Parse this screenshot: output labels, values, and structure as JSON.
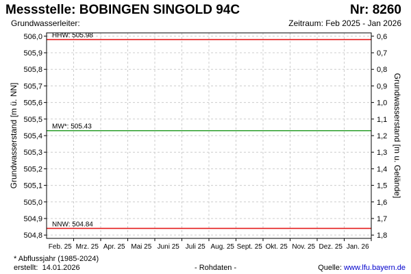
{
  "header": {
    "title": "Messstelle: BOBINGEN SINGOLD 94C",
    "number": "Nr: 8260",
    "aquifer": "Grundwasserleiter:",
    "period": "Zeitraum: Feb 2025 - Jan 2026"
  },
  "footer": {
    "note": "* Abflussjahr (1985-2024)",
    "created_label": "erstellt:",
    "created_date": "14.01.2026",
    "data_kind": "- Rohdaten -",
    "source_label": "Quelle:",
    "source_link": "www.lfu.bayern.de"
  },
  "colors": {
    "hhw": "#e41a1a",
    "mw": "#2a9d2a",
    "nnw": "#e41a1a",
    "grid": "#cccccc",
    "source_link": "#0000cc"
  },
  "chart_data": {
    "type": "line",
    "ylabel": "Grundwasserstand [m ü. NN]",
    "ylabel_right": "Grundwasserstand [m u. Gelände]",
    "ylim": [
      504.78,
      506.02
    ],
    "y_ticks": [
      {
        "value": 506.0,
        "label": "506,0"
      },
      {
        "value": 505.9,
        "label": "505,9"
      },
      {
        "value": 505.8,
        "label": "505,8"
      },
      {
        "value": 505.7,
        "label": "505,7"
      },
      {
        "value": 505.6,
        "label": "505,6"
      },
      {
        "value": 505.5,
        "label": "505,5"
      },
      {
        "value": 505.4,
        "label": "505,4"
      },
      {
        "value": 505.3,
        "label": "505,3"
      },
      {
        "value": 505.2,
        "label": "505,2"
      },
      {
        "value": 505.1,
        "label": "505,1"
      },
      {
        "value": 505.0,
        "label": "505,0"
      },
      {
        "value": 504.9,
        "label": "504,9"
      },
      {
        "value": 504.8,
        "label": "504,8"
      }
    ],
    "y2_ticks": [
      {
        "value": 0.6,
        "label": "0,6"
      },
      {
        "value": 0.7,
        "label": "0,7"
      },
      {
        "value": 0.8,
        "label": "0,8"
      },
      {
        "value": 0.9,
        "label": "0,9"
      },
      {
        "value": 1.0,
        "label": "1,0"
      },
      {
        "value": 1.1,
        "label": "1,1"
      },
      {
        "value": 1.2,
        "label": "1,2"
      },
      {
        "value": 1.3,
        "label": "1,3"
      },
      {
        "value": 1.4,
        "label": "1,4"
      },
      {
        "value": 1.5,
        "label": "1,5"
      },
      {
        "value": 1.6,
        "label": "1,6"
      },
      {
        "value": 1.7,
        "label": "1,7"
      },
      {
        "value": 1.8,
        "label": "1,8"
      }
    ],
    "x_ticks": [
      "Feb. 25",
      "Mrz. 25",
      "Apr. 25",
      "Mai 25",
      "Juni 25",
      "Juli 25",
      "Aug. 25",
      "Sept. 25",
      "Okt. 25",
      "Nov. 25",
      "Dez. 25",
      "Jan. 26"
    ],
    "grid": true,
    "reference_lines": [
      {
        "label": "HHW: 505.98",
        "value": 505.98,
        "color": "#e41a1a"
      },
      {
        "label": "MW*: 505.43",
        "value": 505.43,
        "color": "#2a9d2a"
      },
      {
        "label": "NNW: 504.84",
        "value": 504.84,
        "color": "#e41a1a"
      }
    ]
  }
}
